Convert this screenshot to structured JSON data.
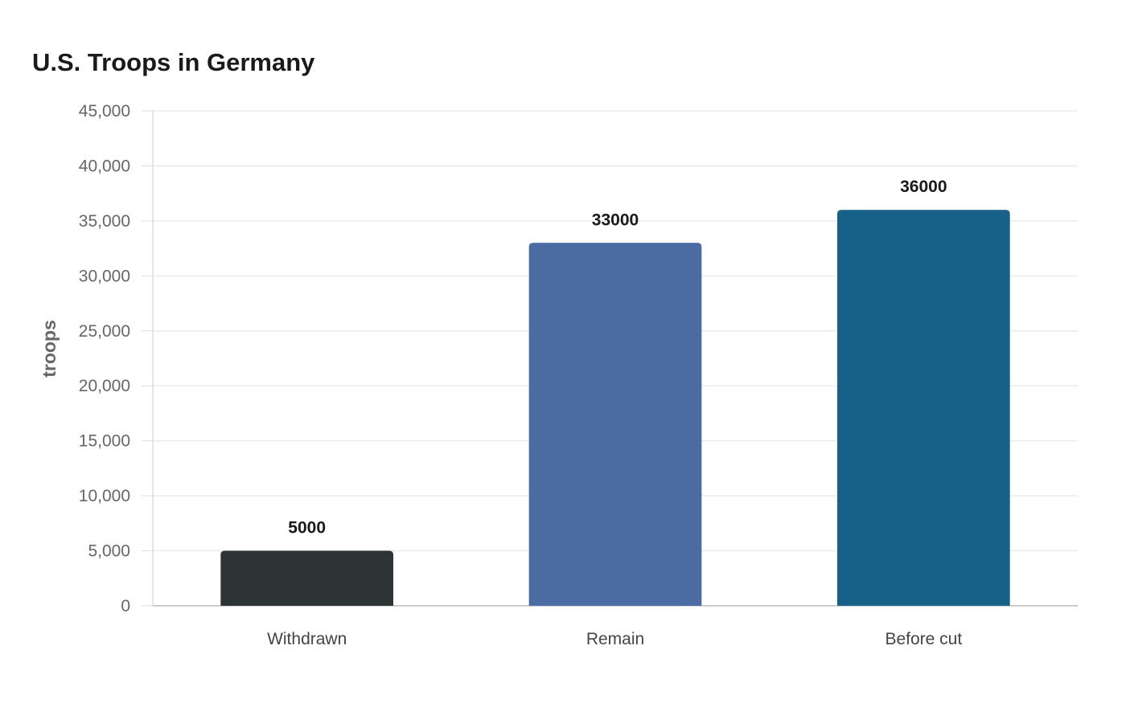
{
  "chart_data": {
    "type": "bar",
    "title": "U.S. Troops in Germany",
    "xlabel": "",
    "ylabel": "troops",
    "categories": [
      "Withdrawn",
      "Remain",
      "Before cut"
    ],
    "values": [
      5000,
      33000,
      36000
    ],
    "value_labels": [
      "5000",
      "33000",
      "36000"
    ],
    "colors": [
      "#2d3436",
      "#4a6ca2",
      "#176087"
    ],
    "ylim": [
      0,
      45000
    ],
    "yticks": [
      0,
      5000,
      10000,
      15000,
      20000,
      25000,
      30000,
      35000,
      40000,
      45000
    ],
    "ytick_labels": [
      "0",
      "5,000",
      "10,000",
      "15,000",
      "20,000",
      "25,000",
      "30,000",
      "35,000",
      "40,000",
      "45,000"
    ],
    "grid": true,
    "legend": "none"
  }
}
